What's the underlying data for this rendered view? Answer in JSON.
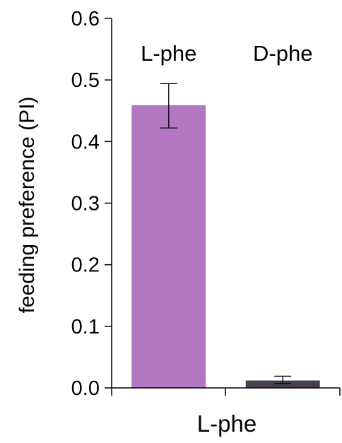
{
  "chart_data": {
    "type": "bar",
    "categories": [
      "L-phe",
      "D-phe"
    ],
    "values": [
      0.459,
      0.012
    ],
    "errors_upper": [
      0.494,
      0.019
    ],
    "errors_lower": [
      0.422,
      0.007
    ],
    "bar_colors": [
      "#b278c4",
      "#4a3f4f"
    ],
    "ylabel": "feeding preference (PI)",
    "xlabel": "L-phe",
    "ylim": [
      0,
      0.6
    ],
    "yticks": [
      {
        "value": 0.0,
        "label": "0.0"
      },
      {
        "value": 0.1,
        "label": "0.1"
      },
      {
        "value": 0.2,
        "label": "0.2"
      },
      {
        "value": 0.3,
        "label": "0.3"
      },
      {
        "value": 0.4,
        "label": "0.4"
      },
      {
        "value": 0.5,
        "label": "0.5"
      },
      {
        "value": 0.6,
        "label": "0.6"
      }
    ],
    "grid": false
  }
}
